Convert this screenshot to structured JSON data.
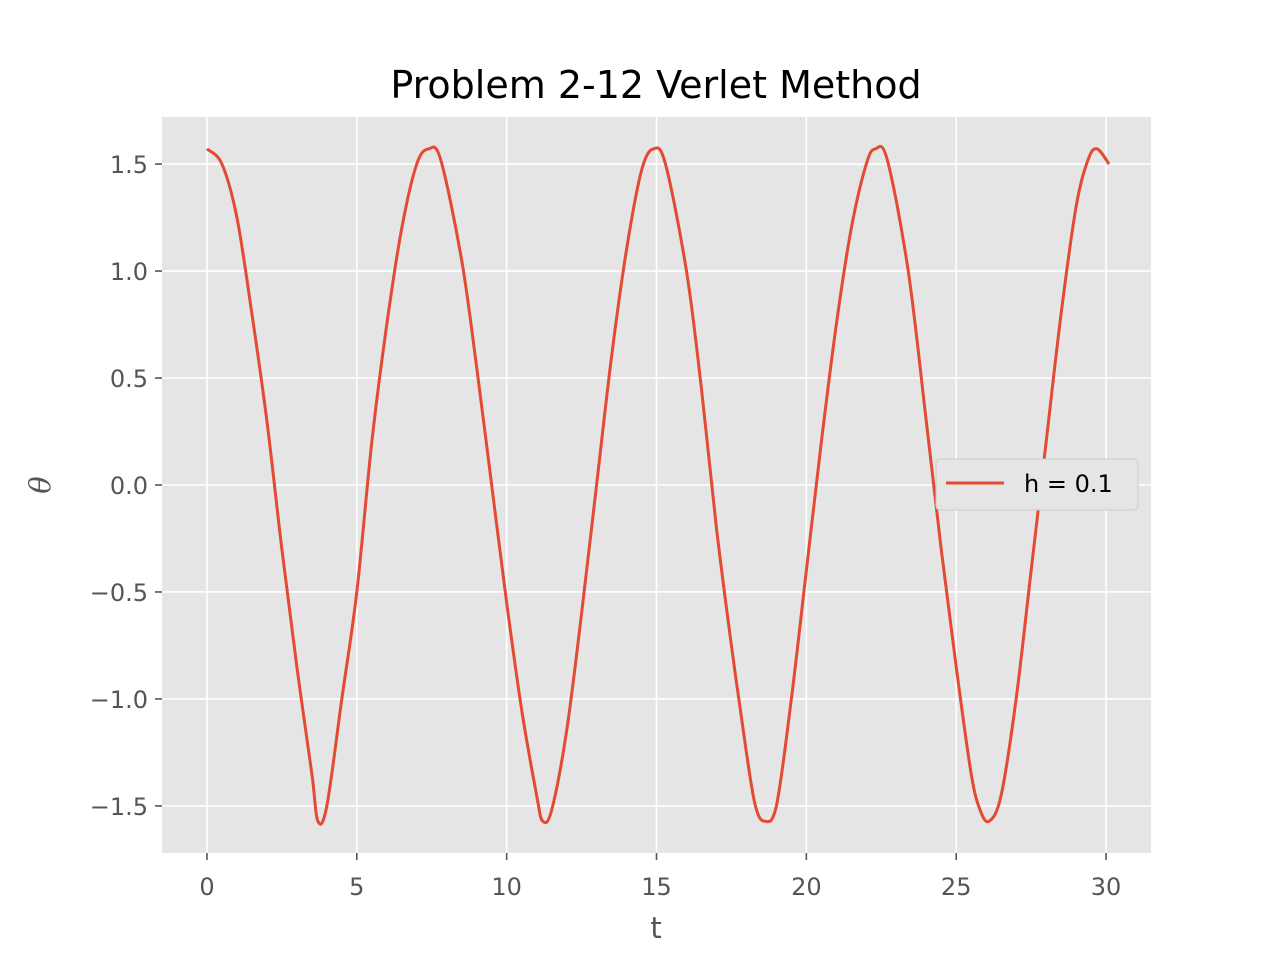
{
  "chart_data": {
    "type": "line",
    "title": "Problem 2-12 Verlet Method",
    "xlabel": "t",
    "ylabel": "θ",
    "xlim": [
      -1.5,
      31.5
    ],
    "ylim": [
      -1.72,
      1.72
    ],
    "xticks": [
      0,
      5,
      10,
      15,
      20,
      25,
      30
    ],
    "xtick_labels": [
      "0",
      "5",
      "10",
      "15",
      "20",
      "25",
      "30"
    ],
    "yticks": [
      1.5,
      1.0,
      0.5,
      0.0,
      -0.5,
      -1.0,
      -1.5
    ],
    "ytick_labels": [
      "1.5",
      "1.0",
      "0.5",
      "0.0",
      "−0.5",
      "−1.0",
      "−1.5"
    ],
    "grid": true,
    "legend_position": "center-right",
    "series": [
      {
        "name": "h = 0.1",
        "color": "#e24a33",
        "x": [
          0,
          0.5,
          1,
          1.5,
          2,
          2.5,
          3,
          3.5,
          3.7,
          4,
          4.5,
          5,
          5.5,
          6,
          6.5,
          7,
          7.4,
          7.8,
          8.5,
          9,
          9.5,
          10,
          10.5,
          11,
          11.2,
          11.5,
          12,
          12.5,
          13,
          13.5,
          14,
          14.5,
          14.9,
          15.3,
          16,
          16.5,
          17,
          17.5,
          18,
          18.3,
          18.6,
          19,
          19.5,
          20,
          20.5,
          21,
          21.5,
          22,
          22.3,
          22.7,
          23.4,
          24,
          24.5,
          25,
          25.5,
          25.8,
          26.1,
          26.5,
          27,
          27.5,
          28,
          28.5,
          29,
          29.4,
          29.7,
          30.1
        ],
        "y": [
          1.571,
          1.5,
          1.25,
          0.8,
          0.3,
          -0.3,
          -0.85,
          -1.35,
          -1.571,
          -1.5,
          -1.0,
          -0.5,
          0.2,
          0.75,
          1.2,
          1.5,
          1.571,
          1.52,
          1.05,
          0.55,
          0.0,
          -0.55,
          -1.05,
          -1.45,
          -1.571,
          -1.52,
          -1.15,
          -0.6,
          0.0,
          0.6,
          1.1,
          1.47,
          1.571,
          1.5,
          1.0,
          0.45,
          -0.2,
          -0.75,
          -1.25,
          -1.5,
          -1.571,
          -1.5,
          -1.0,
          -0.4,
          0.2,
          0.75,
          1.2,
          1.5,
          1.571,
          1.52,
          1.0,
          0.3,
          -0.3,
          -0.85,
          -1.35,
          -1.52,
          -1.571,
          -1.45,
          -1.0,
          -0.4,
          0.2,
          0.8,
          1.3,
          1.52,
          1.571,
          1.5
        ]
      }
    ]
  }
}
